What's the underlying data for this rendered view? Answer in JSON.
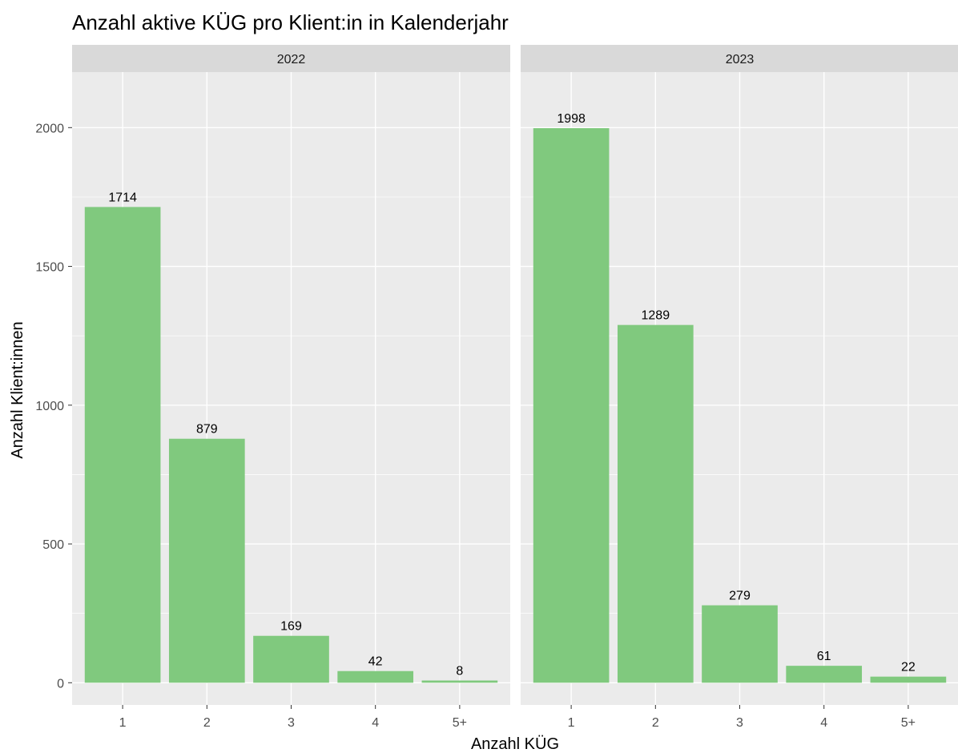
{
  "chart_data": {
    "type": "bar",
    "title": "Anzahl aktive KÜG pro Klient:in in Kalenderjahr",
    "xlabel": "Anzahl KÜG",
    "ylabel": "Anzahl Klient:innen",
    "categories": [
      "1",
      "2",
      "3",
      "4",
      "5+"
    ],
    "ylim": [
      -80,
      2200
    ],
    "y_ticks": [
      0,
      500,
      1000,
      1500,
      2000
    ],
    "grid": true,
    "bar_color": "#80c97e",
    "panel_background": "#ebebeb",
    "strip_background": "#d9d9d9",
    "facets": [
      {
        "label": "2022",
        "values": [
          1714,
          879,
          169,
          42,
          8
        ],
        "value_labels": [
          "1714",
          "879",
          "169",
          "42",
          "8"
        ]
      },
      {
        "label": "2023",
        "values": [
          1998,
          1289,
          279,
          61,
          22
        ],
        "value_labels": [
          "1998",
          "1289",
          "279",
          "61",
          "22"
        ]
      }
    ]
  }
}
